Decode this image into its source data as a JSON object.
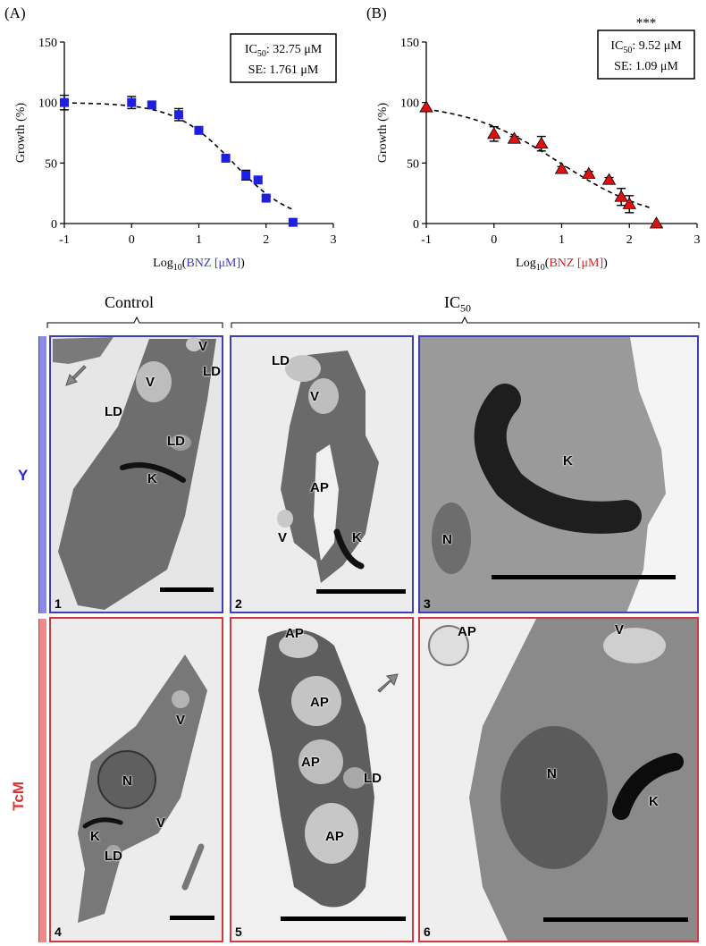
{
  "chart_data": [
    {
      "type": "scatter",
      "panel_label": "(A)",
      "xlabel_prefix": "Log",
      "xlabel_sub": "10",
      "xlabel_open": "(",
      "xlabel_drug": "BNZ [μM]",
      "xlabel_close": ")",
      "ylabel": "Growth (%)",
      "xlim": [
        -1,
        3
      ],
      "ylim": [
        0,
        150
      ],
      "xticks": [
        "-1",
        "0",
        "1",
        "2",
        "3"
      ],
      "yticks": [
        "0",
        "50",
        "100",
        "150"
      ],
      "marker": "square",
      "color": "#1f1fe0",
      "drug_color": "#3a3ad8",
      "significance": "",
      "box_line1_prefix": "IC",
      "box_line1_sub": "50",
      "box_line1_value": ": 32.75 μM",
      "box_line2": "SE: 1.761 μM",
      "points": [
        {
          "x": -1.0,
          "y": 100,
          "err": 6
        },
        {
          "x": 0.0,
          "y": 100,
          "err": 5
        },
        {
          "x": 0.3,
          "y": 98,
          "err": 2
        },
        {
          "x": 0.7,
          "y": 90,
          "err": 5
        },
        {
          "x": 1.0,
          "y": 77,
          "err": 3
        },
        {
          "x": 1.4,
          "y": 54,
          "err": 2
        },
        {
          "x": 1.7,
          "y": 40,
          "err": 4
        },
        {
          "x": 1.88,
          "y": 36,
          "err": 2
        },
        {
          "x": 2.0,
          "y": 21,
          "err": 2
        },
        {
          "x": 2.4,
          "y": 1,
          "err": 0
        }
      ],
      "fit_x": [
        -1.0,
        2.4
      ],
      "fit_ic50_log": 1.515,
      "fit_hill": 1.0
    },
    {
      "type": "scatter",
      "panel_label": "(B)",
      "xlabel_prefix": "Log",
      "xlabel_sub": "10",
      "xlabel_open": "(",
      "xlabel_drug": "BNZ [μM]",
      "xlabel_close": ")",
      "ylabel": "Growth (%)",
      "xlim": [
        -1,
        3
      ],
      "ylim": [
        0,
        150
      ],
      "xticks": [
        "-1",
        "0",
        "1",
        "2",
        "3"
      ],
      "yticks": [
        "0",
        "50",
        "100",
        "150"
      ],
      "marker": "triangle",
      "color": "#e01010",
      "drug_color": "#e02020",
      "significance": "***",
      "box_line1_prefix": "IC",
      "box_line1_sub": "50",
      "box_line1_value": ": 9.52 μM",
      "box_line2": "SE: 1.09 μM",
      "points": [
        {
          "x": -1.0,
          "y": 96,
          "err": 0
        },
        {
          "x": 0.0,
          "y": 74,
          "err": 6
        },
        {
          "x": 0.3,
          "y": 70,
          "err": 2
        },
        {
          "x": 0.7,
          "y": 66,
          "err": 6
        },
        {
          "x": 1.0,
          "y": 45,
          "err": 2
        },
        {
          "x": 1.4,
          "y": 41,
          "err": 2
        },
        {
          "x": 1.7,
          "y": 36,
          "err": 2
        },
        {
          "x": 1.88,
          "y": 22,
          "err": 7
        },
        {
          "x": 2.0,
          "y": 16,
          "err": 7
        },
        {
          "x": 2.4,
          "y": 0,
          "err": 0
        }
      ],
      "fit_x": [
        -1.0,
        2.3
      ],
      "fit_ic50_log": 0.98,
      "fit_hill": 0.62
    }
  ],
  "micrographs": {
    "control_label": "Control",
    "ic50_prefix": "IC",
    "ic50_sub": "50",
    "strain_y": "Y",
    "strain_tcm": "TcM",
    "strain_y_color": "#2727d6",
    "strain_tcm_color": "#e03030",
    "panels": [
      {
        "num": "1",
        "labels": [
          "LD",
          "V",
          "LD",
          "LD",
          "K",
          "V"
        ],
        "border": "#3d3dc0"
      },
      {
        "num": "2",
        "labels": [
          "LD",
          "V",
          "AP",
          "V",
          "K"
        ],
        "border": "#3d3dc0"
      },
      {
        "num": "3",
        "labels": [
          "K",
          "N"
        ],
        "border": "#3d3dc0"
      },
      {
        "num": "4",
        "labels": [
          "V",
          "N",
          "V",
          "K",
          "LD"
        ],
        "border": "#d03a3a"
      },
      {
        "num": "5",
        "labels": [
          "AP",
          "AP",
          "AP",
          "LD",
          "AP"
        ],
        "border": "#d03a3a"
      },
      {
        "num": "6",
        "labels": [
          "AP",
          "V",
          "N",
          "K"
        ],
        "border": "#d03a3a"
      }
    ]
  }
}
